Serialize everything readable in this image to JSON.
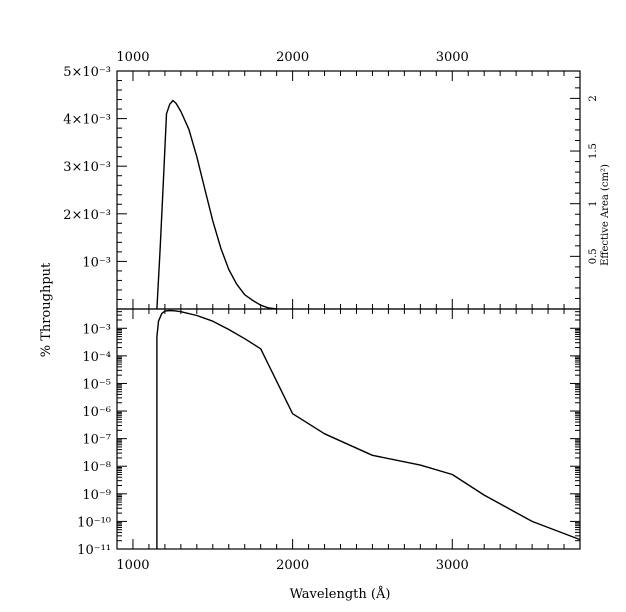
{
  "chart_data": [
    {
      "type": "line",
      "panel": "top",
      "x_unit": "Angstrom",
      "x_ticks": [
        1000,
        2000,
        3000
      ],
      "xlim": [
        900,
        3800
      ],
      "ylim": [
        0,
        0.005
      ],
      "y_tick_labels": [
        "10⁻³",
        "2×10⁻³",
        "3×10⁻³",
        "4×10⁻³",
        "5×10⁻³"
      ],
      "y_tick_values": [
        0.001,
        0.002,
        0.003,
        0.004,
        0.005
      ],
      "right_axis_label": "Effective Area (cm²)",
      "right_axis_ticks": [
        "0.5",
        "1",
        "1.5",
        "2"
      ],
      "right_axis_values": [
        0.5,
        1,
        1.5,
        2
      ],
      "right_axis_scale": 452,
      "series": [
        {
          "x": [
            1150,
            1170,
            1190,
            1210,
            1230,
            1250,
            1270,
            1300,
            1350,
            1400,
            1450,
            1500,
            1550,
            1600,
            1650,
            1700,
            1750,
            1800,
            1850,
            1900
          ],
          "y": [
            0.0,
            0.00125,
            0.00265,
            0.0041,
            0.0043,
            0.00438,
            0.00432,
            0.00415,
            0.00378,
            0.0032,
            0.00252,
            0.00185,
            0.00128,
            0.00083,
            0.00052,
            0.0003,
            0.00018,
            8e-05,
            2e-05,
            0.0
          ]
        }
      ]
    },
    {
      "type": "line",
      "panel": "bottom",
      "y_scale": "log",
      "xlim": [
        900,
        3800
      ],
      "ylim": [
        1e-11,
        0.005
      ],
      "x_ticks": [
        1000,
        2000,
        3000
      ],
      "y_tick_labels": [
        "10⁻³",
        "10⁻⁴",
        "10⁻⁵",
        "10⁻⁶",
        "10⁻⁷",
        "10⁻⁸",
        "10⁻⁹",
        "10⁻¹⁰",
        "10⁻¹¹"
      ],
      "y_tick_values": [
        0.001,
        0.0001,
        1e-05,
        1e-06,
        1e-07,
        1e-08,
        1e-09,
        1e-10,
        1e-11
      ],
      "xlabel": "Wavelength (Å)",
      "ylabel": "% Throughput",
      "series": [
        {
          "x": [
            1150,
            1150,
            1160,
            1180,
            1200,
            1230,
            1260,
            1300,
            1400,
            1500,
            1600,
            1700,
            1800,
            2000,
            2200,
            2500,
            2800,
            3000,
            3200,
            3500,
            3800
          ],
          "y": [
            1e-11,
            0.0005,
            0.0018,
            0.0034,
            0.0042,
            0.0044,
            0.0043,
            0.004,
            0.0029,
            0.0018,
            0.0009,
            0.00042,
            0.00018,
            8e-07,
            1.5e-07,
            2.5e-08,
            1.1e-08,
            5e-09,
            9e-10,
            1e-10,
            2.2e-11
          ]
        }
      ]
    }
  ]
}
